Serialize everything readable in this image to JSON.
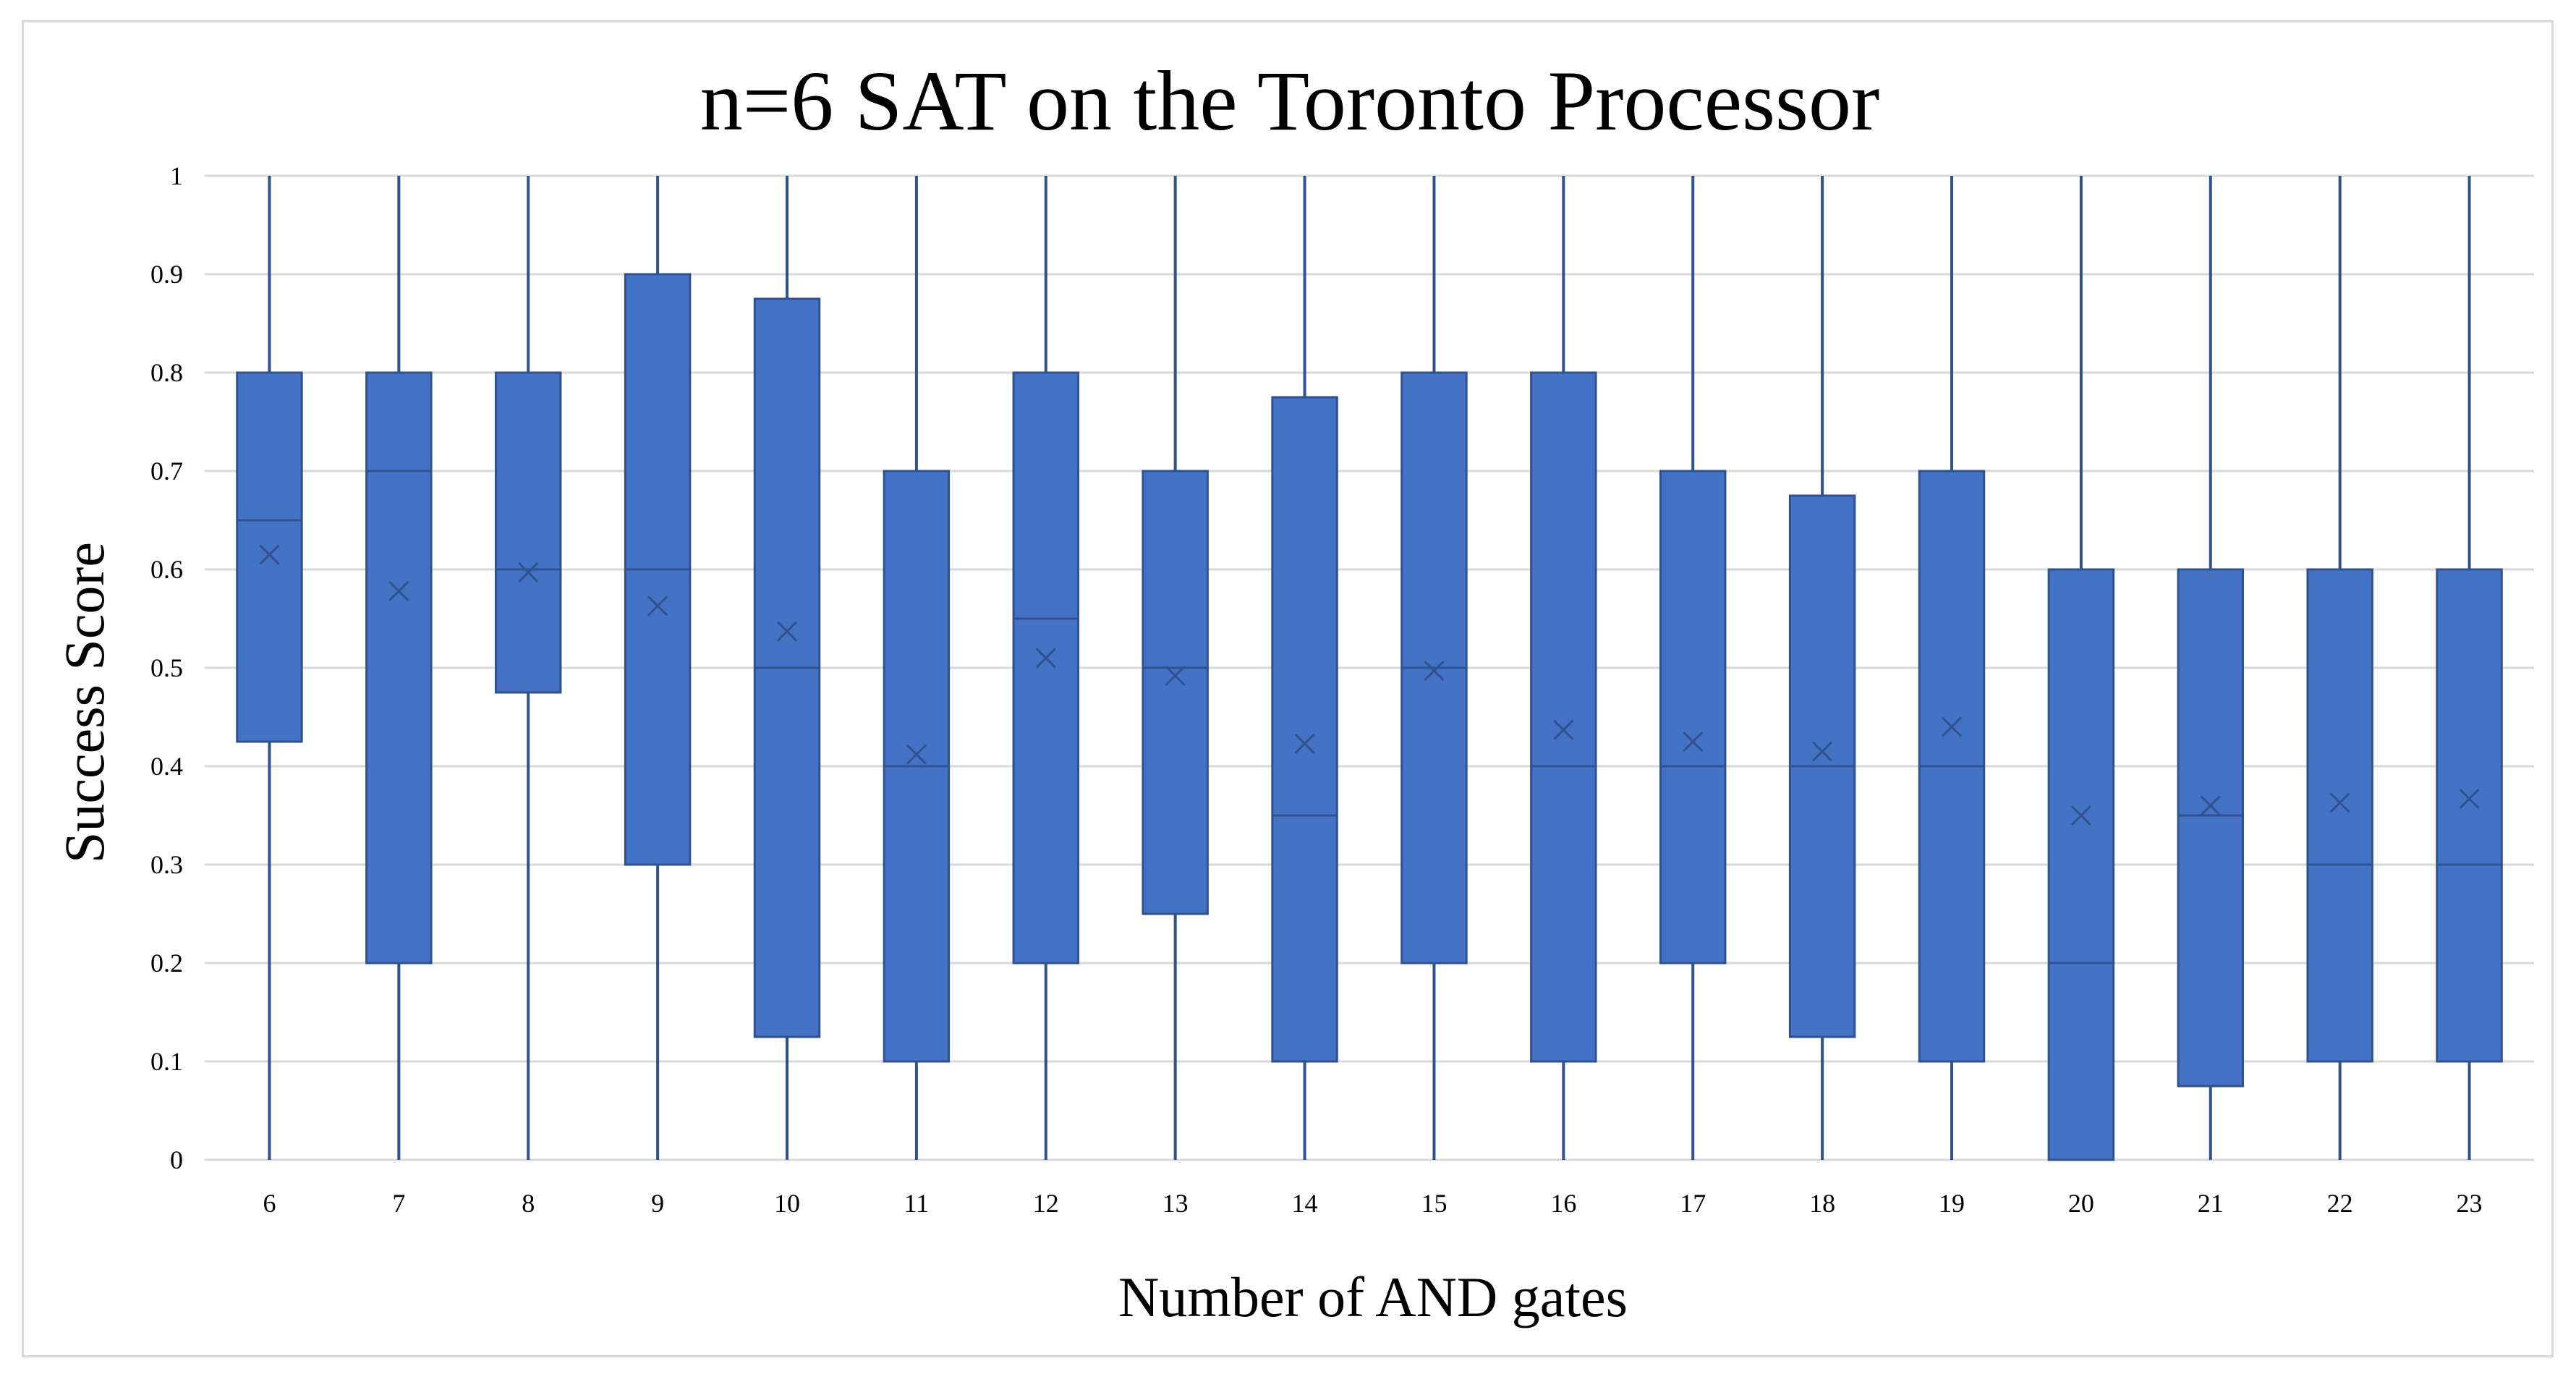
{
  "chart_data": {
    "type": "box",
    "title": "n=6 SAT on the Toronto Processor",
    "xlabel": "Number of AND gates",
    "ylabel": "Success Score",
    "ylim": [
      0,
      1
    ],
    "yticks": [
      "0",
      "0.1",
      "0.2",
      "0.3",
      "0.4",
      "0.5",
      "0.6",
      "0.7",
      "0.8",
      "0.9",
      "1"
    ],
    "categories": [
      "6",
      "7",
      "8",
      "9",
      "10",
      "11",
      "12",
      "13",
      "14",
      "15",
      "16",
      "17",
      "18",
      "19",
      "20",
      "21",
      "22",
      "23"
    ],
    "grid": true,
    "colors": {
      "box_fill": "#4472c4",
      "box_stroke": "#2f528f",
      "whisker": "#2f528f",
      "grid": "#d9d9d9"
    },
    "boxes": [
      {
        "x": "6",
        "min": 0,
        "q1": 0.425,
        "median": 0.65,
        "q3": 0.8,
        "max": 1,
        "mean": 0.615
      },
      {
        "x": "7",
        "min": 0,
        "q1": 0.2,
        "median": 0.7,
        "q3": 0.8,
        "max": 1,
        "mean": 0.578
      },
      {
        "x": "8",
        "min": 0,
        "q1": 0.475,
        "median": 0.6,
        "q3": 0.8,
        "max": 1,
        "mean": 0.597
      },
      {
        "x": "9",
        "min": 0,
        "q1": 0.3,
        "median": 0.6,
        "q3": 0.9,
        "max": 1,
        "mean": 0.563
      },
      {
        "x": "10",
        "min": 0,
        "q1": 0.125,
        "median": 0.5,
        "q3": 0.875,
        "max": 1,
        "mean": 0.537
      },
      {
        "x": "11",
        "min": 0,
        "q1": 0.1,
        "median": 0.4,
        "q3": 0.7,
        "max": 1,
        "mean": 0.412
      },
      {
        "x": "12",
        "min": 0,
        "q1": 0.2,
        "median": 0.55,
        "q3": 0.8,
        "max": 1,
        "mean": 0.51
      },
      {
        "x": "13",
        "min": 0,
        "q1": 0.25,
        "median": 0.5,
        "q3": 0.7,
        "max": 1,
        "mean": 0.492
      },
      {
        "x": "14",
        "min": 0,
        "q1": 0.1,
        "median": 0.35,
        "q3": 0.775,
        "max": 1,
        "mean": 0.423
      },
      {
        "x": "15",
        "min": 0,
        "q1": 0.2,
        "median": 0.5,
        "q3": 0.8,
        "max": 1,
        "mean": 0.497
      },
      {
        "x": "16",
        "min": 0,
        "q1": 0.1,
        "median": 0.4,
        "q3": 0.8,
        "max": 1,
        "mean": 0.437
      },
      {
        "x": "17",
        "min": 0,
        "q1": 0.2,
        "median": 0.4,
        "q3": 0.7,
        "max": 1,
        "mean": 0.425
      },
      {
        "x": "18",
        "min": 0,
        "q1": 0.125,
        "median": 0.4,
        "q3": 0.675,
        "max": 1,
        "mean": 0.415
      },
      {
        "x": "19",
        "min": 0,
        "q1": 0.1,
        "median": 0.4,
        "q3": 0.7,
        "max": 1,
        "mean": 0.44
      },
      {
        "x": "20",
        "min": 0,
        "q1": 0.0,
        "median": 0.2,
        "q3": 0.6,
        "max": 1,
        "mean": 0.35
      },
      {
        "x": "21",
        "min": 0,
        "q1": 0.075,
        "median": 0.35,
        "q3": 0.6,
        "max": 1,
        "mean": 0.36
      },
      {
        "x": "22",
        "min": 0,
        "q1": 0.1,
        "median": 0.3,
        "q3": 0.6,
        "max": 1,
        "mean": 0.363
      },
      {
        "x": "23",
        "min": 0,
        "q1": 0.1,
        "median": 0.3,
        "q3": 0.6,
        "max": 1,
        "mean": 0.367
      }
    ]
  }
}
